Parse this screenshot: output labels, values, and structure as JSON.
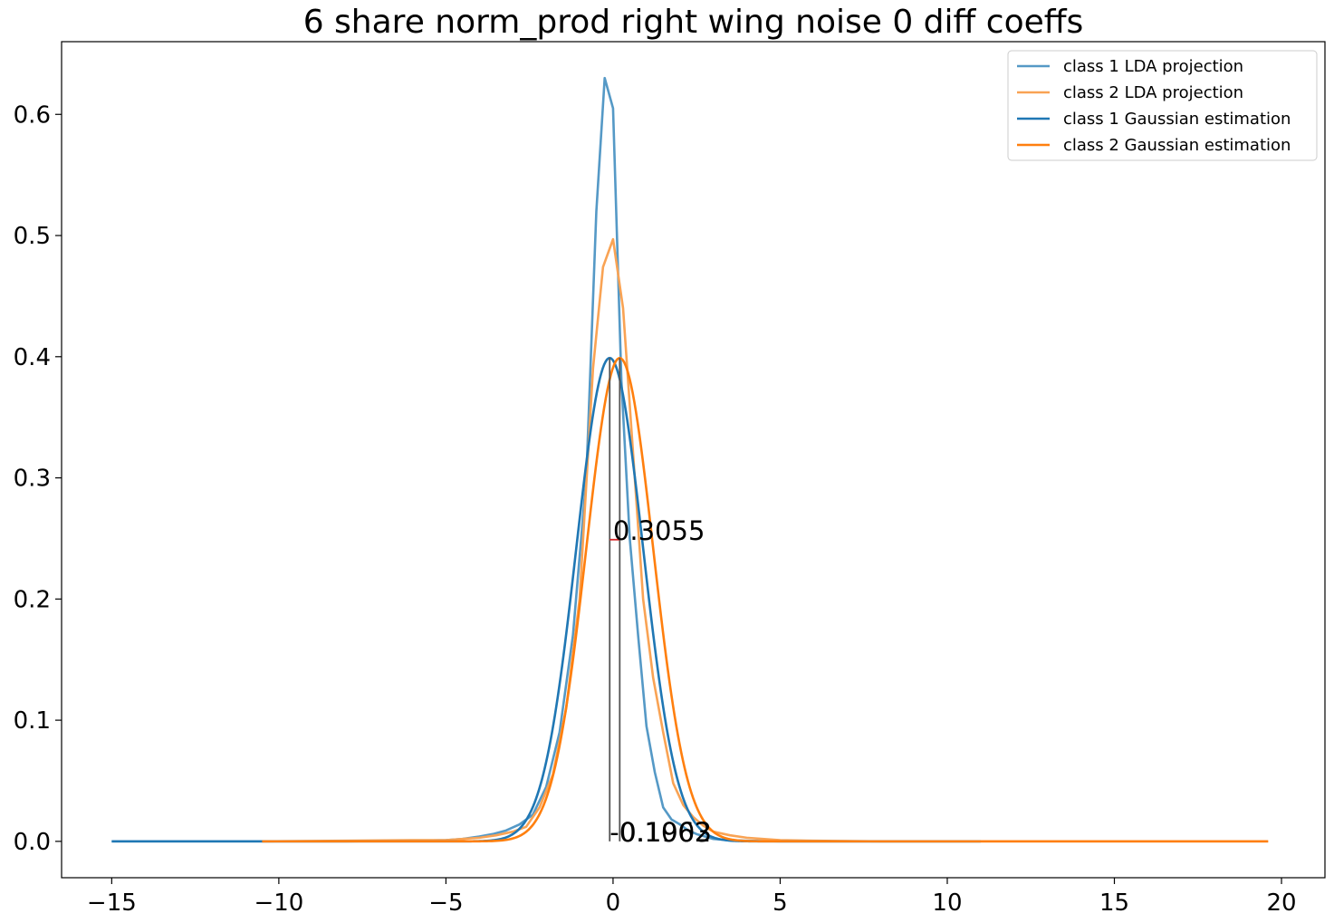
{
  "chart_data": {
    "type": "line",
    "title": "6 share norm_prod right wing noise 0 diff coeffs",
    "xlabel": "",
    "ylabel": "",
    "xlim": [
      -16.5,
      21.3
    ],
    "ylim": [
      -0.03,
      0.66
    ],
    "xticks": [
      -15,
      -10,
      -5,
      0,
      5,
      10,
      15,
      20
    ],
    "xtick_labels": [
      "−15",
      "−10",
      "−5",
      "0",
      "5",
      "10",
      "15",
      "20"
    ],
    "yticks": [
      0.0,
      0.1,
      0.2,
      0.3,
      0.4,
      0.5,
      0.6
    ],
    "ytick_labels": [
      "0.0",
      "0.1",
      "0.2",
      "0.3",
      "0.4",
      "0.5",
      "0.6"
    ],
    "grid": false,
    "legend_position": "top-right",
    "series": [
      {
        "name": "class 1 LDA projection",
        "color": "#5599c6",
        "kind": "empirical",
        "x": [
          -15.0,
          -12.0,
          -10.0,
          -8.0,
          -6.0,
          -5.0,
          -4.5,
          -4.0,
          -3.6,
          -3.2,
          -2.8,
          -2.4,
          -2.0,
          -1.6,
          -1.2,
          -0.8,
          -0.5,
          -0.25,
          0.0,
          0.25,
          0.5,
          0.75,
          1.0,
          1.25,
          1.5,
          1.75,
          2.0,
          2.25,
          2.5,
          2.75,
          3.0,
          3.5,
          4.0,
          5.0,
          6.0,
          8.0,
          11.0
        ],
        "y": [
          0.0,
          0.0,
          0.0,
          0.0,
          0.0005,
          0.001,
          0.002,
          0.004,
          0.006,
          0.009,
          0.014,
          0.022,
          0.045,
          0.09,
          0.17,
          0.3,
          0.52,
          0.63,
          0.605,
          0.38,
          0.25,
          0.17,
          0.095,
          0.057,
          0.028,
          0.018,
          0.014,
          0.009,
          0.006,
          0.004,
          0.002,
          0.001,
          0.0005,
          0.0,
          0.0,
          0.0,
          0.0
        ]
      },
      {
        "name": "class 2 LDA projection",
        "color": "#f9a354",
        "kind": "empirical",
        "x": [
          -10.5,
          -8.0,
          -6.0,
          -5.0,
          -4.5,
          -4.0,
          -3.5,
          -3.0,
          -2.6,
          -2.2,
          -1.8,
          -1.4,
          -1.0,
          -0.6,
          -0.3,
          0.0,
          0.3,
          0.6,
          0.9,
          1.2,
          1.5,
          1.8,
          2.1,
          2.4,
          2.7,
          3.0,
          3.5,
          4.0,
          5.0,
          6.0,
          8.0,
          10.0,
          13.0,
          16.0,
          19.6
        ],
        "y": [
          0.0,
          0.0005,
          0.001,
          0.001,
          0.002,
          0.003,
          0.005,
          0.008,
          0.012,
          0.028,
          0.055,
          0.11,
          0.2,
          0.39,
          0.474,
          0.497,
          0.44,
          0.32,
          0.2,
          0.135,
          0.09,
          0.048,
          0.03,
          0.02,
          0.013,
          0.008,
          0.005,
          0.003,
          0.001,
          0.0005,
          0.0,
          0.0,
          0.0,
          0.0,
          0.0
        ]
      },
      {
        "name": "class 1 Gaussian estimation",
        "color": "#1f77b4",
        "kind": "gaussian",
        "mu": -0.1,
        "sigma": 1.0,
        "xrange": [
          -15.0,
          11.0
        ]
      },
      {
        "name": "class 2 Gaussian estimation",
        "color": "#ff7f0e",
        "kind": "gaussian",
        "mu": 0.2,
        "sigma": 1.0,
        "xrange": [
          -10.5,
          19.6
        ]
      }
    ],
    "annotations": [
      {
        "text": "0.3055",
        "x": 0.0,
        "y": 0.249
      },
      {
        "text": "-0.1062",
        "x": -0.1,
        "y": 0.0
      },
      {
        "text": "0.1903",
        "x": 0.2,
        "y": 0.0
      }
    ],
    "vertical_markers": [
      {
        "x": -0.1,
        "y0": 0.0,
        "y1": 0.399,
        "color": "#555555"
      },
      {
        "x": 0.2,
        "y0": 0.0,
        "y1": 0.399,
        "color": "#555555"
      }
    ],
    "distance_marker": {
      "x0": -0.1,
      "x1": 0.2,
      "y": 0.249,
      "color": "#d62728"
    }
  }
}
